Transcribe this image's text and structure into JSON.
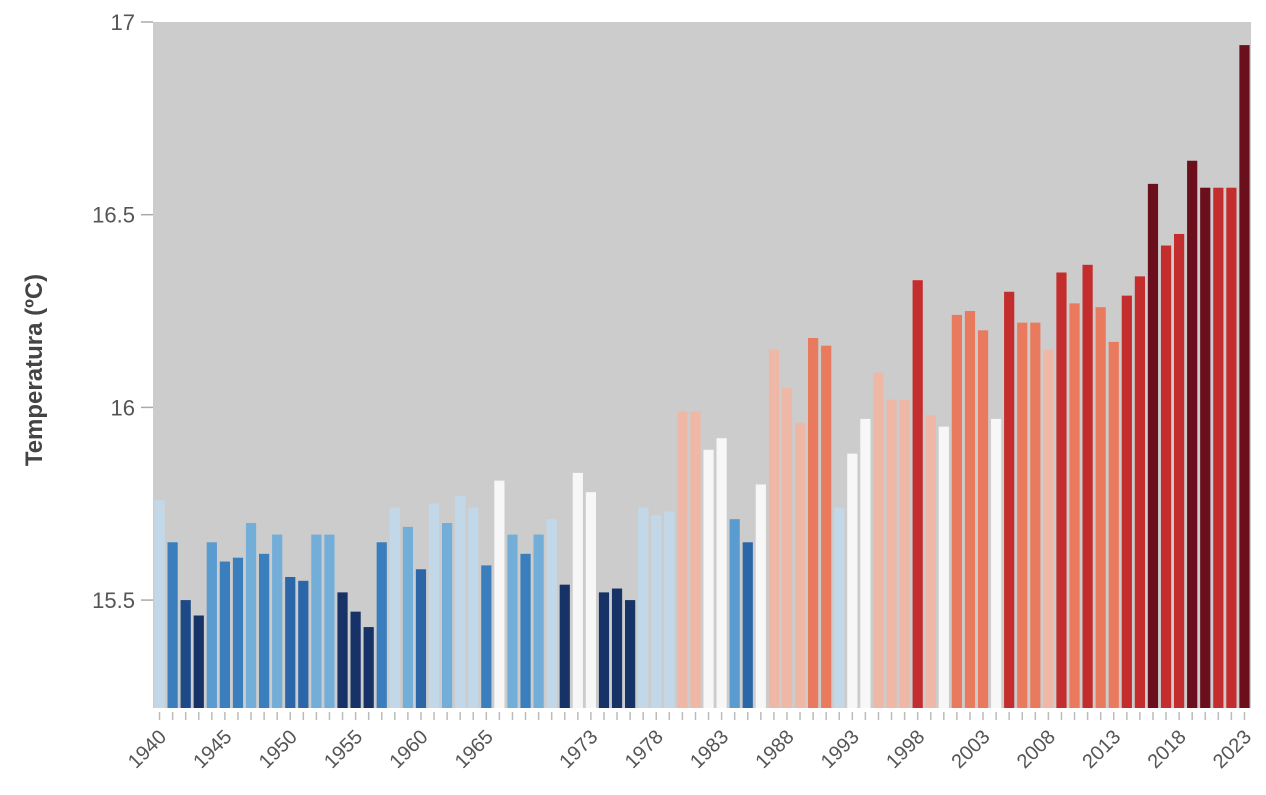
{
  "chart_data": {
    "type": "bar",
    "title": "",
    "xlabel": "",
    "ylabel": "Temperatura (ºC)",
    "ylim": [
      15.22,
      17.0
    ],
    "yticks": [
      15.5,
      16,
      16.5,
      17
    ],
    "ytick_labels": [
      "15.5",
      "16",
      "16.5",
      "17"
    ],
    "xtick_labels": [
      "1940",
      "1945",
      "1950",
      "1955",
      "1960",
      "1965",
      "1973",
      "1978",
      "1983",
      "1988",
      "1993",
      "1998",
      "2003",
      "2008",
      "2013",
      "2018",
      "2023"
    ],
    "grid": false,
    "legend": "none",
    "plot_background": "#cccccc",
    "categories": [
      1940,
      1941,
      1942,
      1943,
      1944,
      1945,
      1946,
      1947,
      1948,
      1949,
      1950,
      1951,
      1952,
      1953,
      1954,
      1955,
      1956,
      1957,
      1958,
      1959,
      1960,
      1961,
      1962,
      1963,
      1964,
      1965,
      1966,
      1967,
      1968,
      1969,
      1970,
      1971,
      1972,
      1973,
      1974,
      1975,
      1976,
      1977,
      1978,
      1979,
      1980,
      1981,
      1982,
      1983,
      1984,
      1985,
      1986,
      1987,
      1988,
      1989,
      1990,
      1991,
      1992,
      1993,
      1994,
      1995,
      1996,
      1997,
      1998,
      1999,
      2000,
      2001,
      2002,
      2003,
      2004,
      2005,
      2006,
      2007,
      2008,
      2009,
      2010,
      2011,
      2012,
      2013,
      2014,
      2015,
      2016,
      2017,
      2018,
      2019,
      2020,
      2021,
      2022,
      2023
    ],
    "values": [
      15.76,
      15.65,
      15.5,
      15.46,
      15.65,
      15.6,
      15.61,
      15.7,
      15.62,
      15.67,
      15.56,
      15.55,
      15.67,
      15.67,
      15.52,
      15.47,
      15.43,
      15.65,
      15.74,
      15.69,
      15.58,
      15.75,
      15.7,
      15.77,
      15.74,
      15.59,
      15.81,
      15.67,
      15.62,
      15.67,
      15.71,
      15.54,
      15.83,
      15.78,
      15.52,
      15.53,
      15.5,
      15.74,
      15.72,
      15.73,
      15.99,
      15.99,
      15.89,
      15.92,
      15.71,
      15.65,
      15.8,
      16.15,
      16.05,
      15.96,
      16.18,
      16.16,
      15.74,
      15.88,
      15.97,
      16.09,
      16.02,
      16.02,
      16.33,
      15.98,
      15.95,
      16.24,
      16.25,
      16.2,
      15.97,
      16.3,
      16.22,
      16.22,
      16.15,
      16.35,
      16.27,
      16.37,
      16.26,
      16.17,
      16.29,
      16.34,
      16.58,
      16.42,
      16.45,
      16.64,
      16.57,
      16.57,
      16.57,
      16.94
    ],
    "colors": [
      "#c2d8e9",
      "#3a7ebd",
      "#1d4a86",
      "#173266",
      "#5a9bd0",
      "#3a7ebd",
      "#3a7ebd",
      "#73aed8",
      "#3a7ebd",
      "#73aed8",
      "#2b66a8",
      "#2b66a8",
      "#73aed8",
      "#73aed8",
      "#173266",
      "#173266",
      "#173266",
      "#3a7ebd",
      "#c2d8e9",
      "#73aed8",
      "#2b66a8",
      "#c2d8e9",
      "#73aed8",
      "#c2d8e9",
      "#c2d8e9",
      "#3a7ebd",
      "#f7f7f7",
      "#73aed8",
      "#3a7ebd",
      "#73aed8",
      "#c2d8e9",
      "#173266",
      "#f7f7f7",
      "#f7f7f7",
      "#173266",
      "#173266",
      "#173266",
      "#c2d8e9",
      "#c2d8e9",
      "#c2d8e9",
      "#efb8a6",
      "#efb8a6",
      "#f7f7f7",
      "#f7f7f7",
      "#5a9bd0",
      "#2b66a8",
      "#f7f7f7",
      "#efb8a6",
      "#efb8a6",
      "#efb8a6",
      "#ea7a5e",
      "#ea7a5e",
      "#c2d8e9",
      "#f7f7f7",
      "#f7f7f7",
      "#efb8a6",
      "#efb8a6",
      "#efb8a6",
      "#c42d2d",
      "#efb8a6",
      "#f7f7f7",
      "#ea7a5e",
      "#ea7a5e",
      "#ea7a5e",
      "#f7f7f7",
      "#c42d2d",
      "#ea7a5e",
      "#ea7a5e",
      "#efb8a6",
      "#c42d2d",
      "#ea7a5e",
      "#c42d2d",
      "#ea7a5e",
      "#ea7a5e",
      "#c42d2d",
      "#c42d2d",
      "#6b0f1c",
      "#c42d2d",
      "#c42d2d",
      "#6b0f1c",
      "#6b0f1c",
      "#c42d2d",
      "#c42d2d",
      "#6b0f1c"
    ]
  }
}
